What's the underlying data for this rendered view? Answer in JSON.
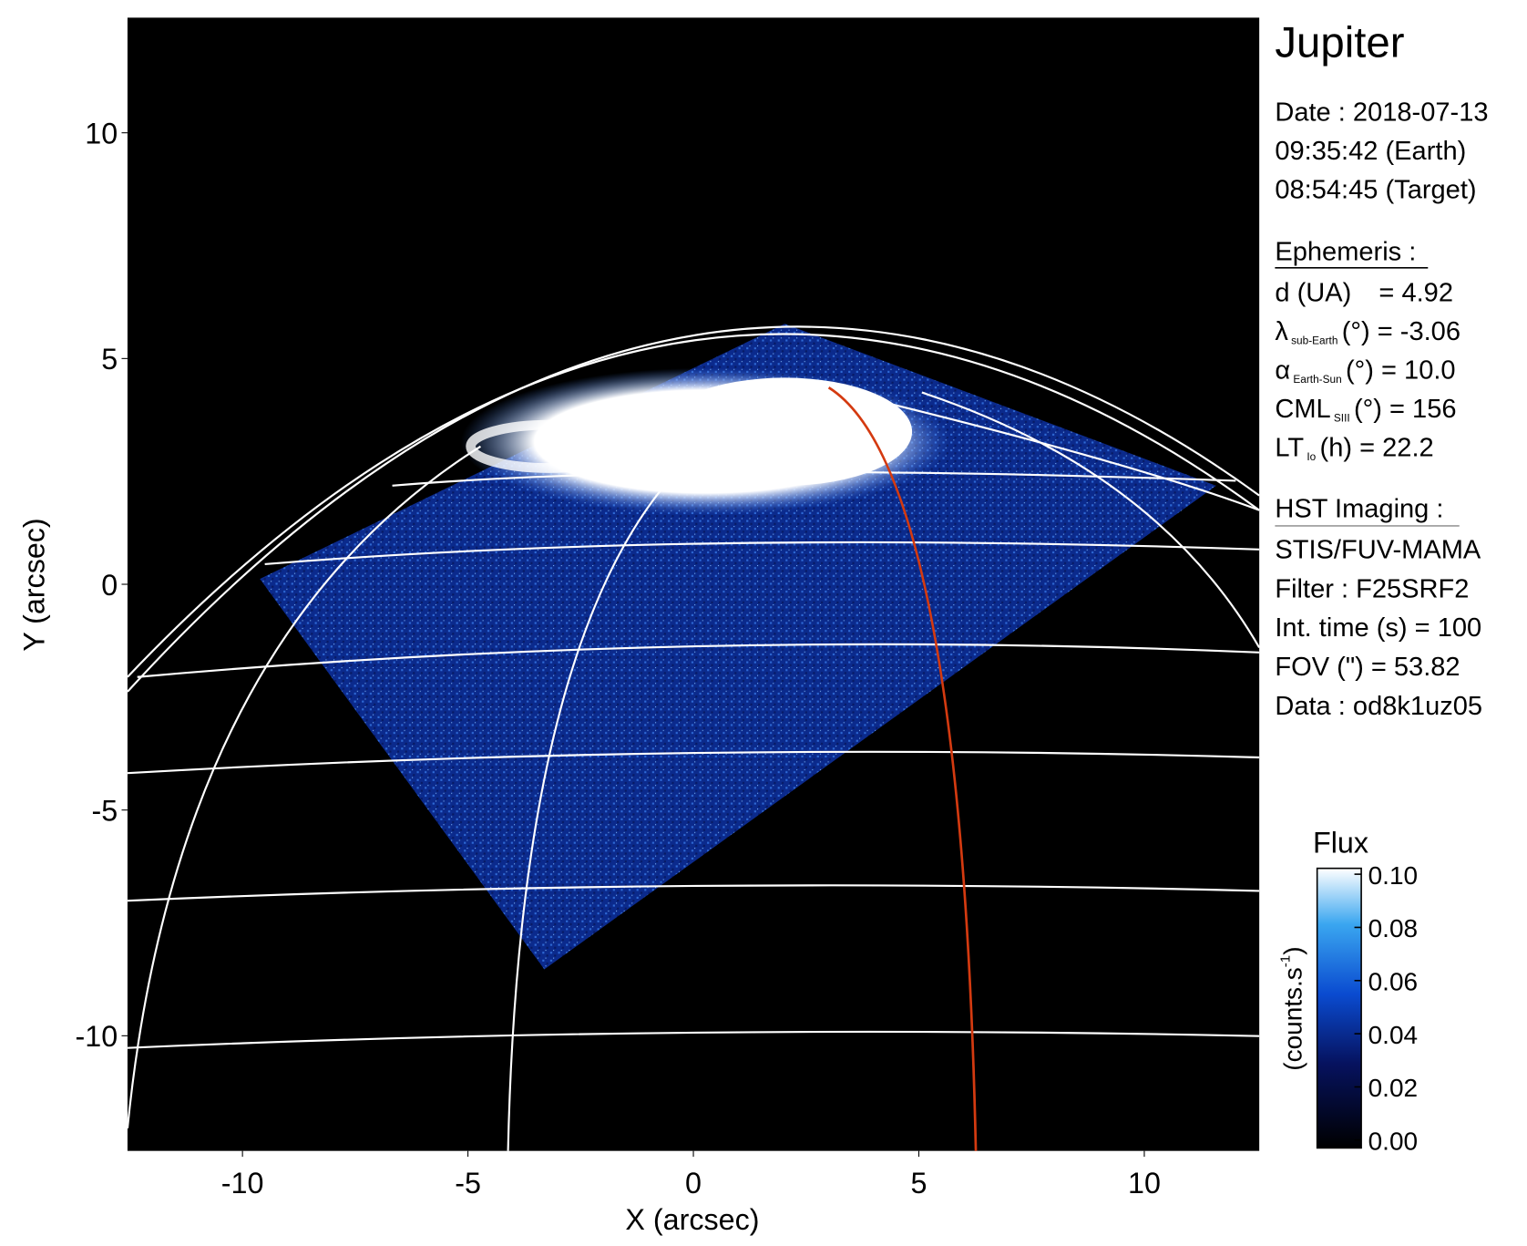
{
  "chart_data": {
    "type": "image",
    "xlabel": "X (arcsec)",
    "ylabel": "Y (arcsec)",
    "xlim": [
      -12.55,
      12.55
    ],
    "ylim": [
      -12.55,
      12.55
    ],
    "xticks": [
      -10,
      -5,
      0,
      5,
      10
    ],
    "yticks": [
      -10,
      -5,
      0,
      5,
      10
    ],
    "colorbar": {
      "title": "Flux",
      "label": "(counts.s",
      "label_sup": "-1",
      "label_end": ")",
      "lim": [
        0,
        0.1
      ],
      "ticks": [
        {
          "value": 0,
          "label": "0.00"
        },
        {
          "value": 0.02,
          "label": "0.02"
        },
        {
          "value": 0.04,
          "label": "0.04"
        },
        {
          "value": 0.06,
          "label": "0.06"
        },
        {
          "value": 0.08,
          "label": "0.08"
        },
        {
          "value": 0.1,
          "label": "0.10"
        }
      ]
    },
    "info": {
      "title": "Jupiter",
      "date": [
        "Date : 2018-07-13",
        "09:35:42 (Earth)",
        "08:54:45 (Target)"
      ],
      "ephemeris_title": "Ephemeris :",
      "ephemeris": [
        {
          "label": "d (UA)",
          "text": "= 4.92"
        },
        {
          "label": "λ",
          "sub": "sub-Earth",
          "text": "(°) = -3.06"
        },
        {
          "label": "α",
          "sub": "Earth-Sun",
          "text": "(°) = 10.0"
        },
        {
          "label": "CML",
          "sub": "SIII",
          "text": "(°) = 156"
        },
        {
          "label": "LT",
          "sub": "Io",
          "text": "(h) = 22.2"
        }
      ],
      "hst_title": "HST Imaging :",
      "hst": [
        "STIS/FUV-MAMA",
        "Filter : F25SRF2",
        "Int. time (s) = 100",
        "FOV (\") = 53.82",
        "Data : od8k1uz05"
      ]
    }
  }
}
